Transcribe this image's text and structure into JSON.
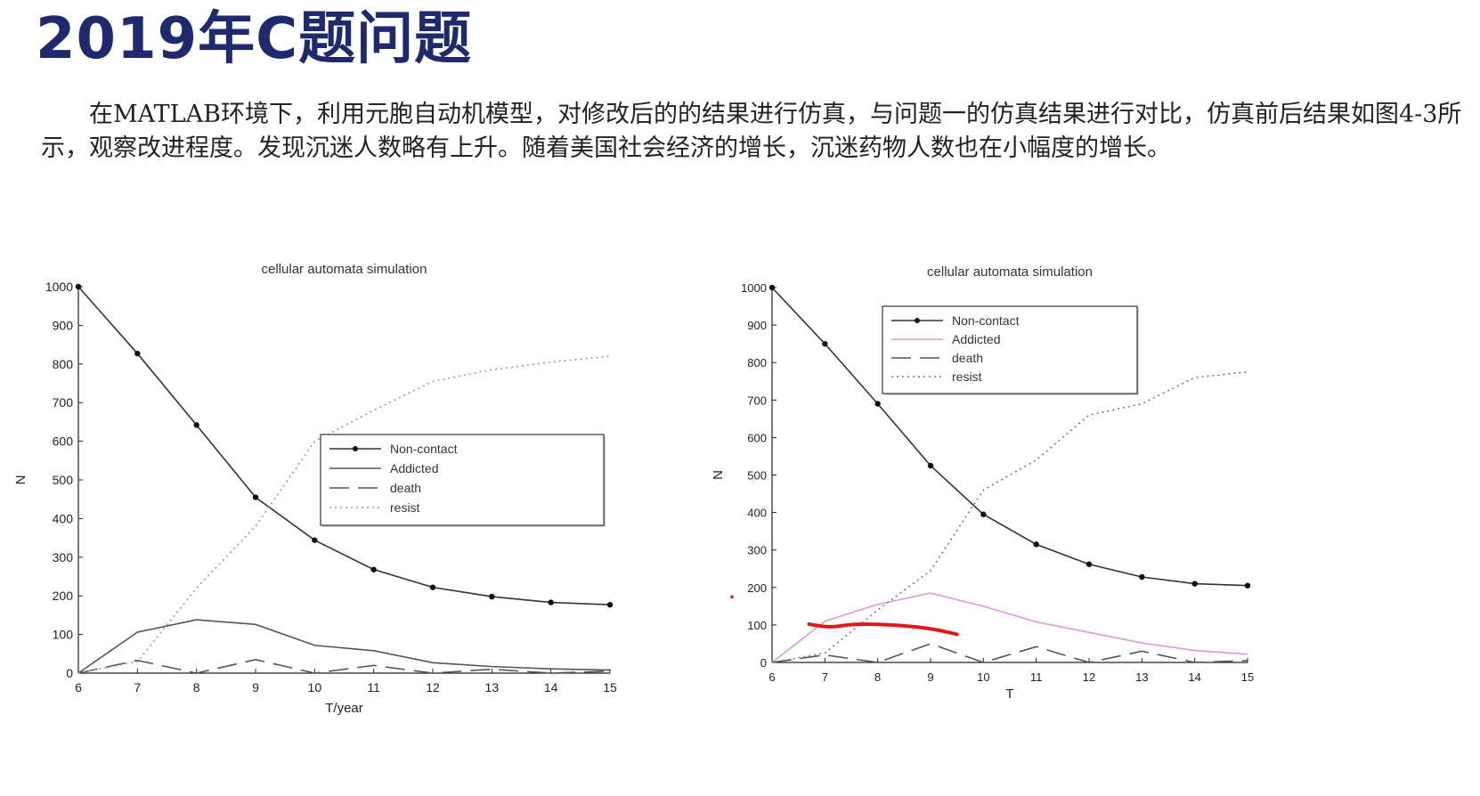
{
  "slide": {
    "title": "2019年C题问题",
    "paragraph": "在MATLAB环境下，利用元胞自动机模型，对修改后的的结果进行仿真，与问题一的仿真结果进行对比，仿真前后结果如图4-3所示，观察改进程度。发现沉迷人数略有上升。随着美国社会经济的增长，沉迷药物人数也在小幅度的增长。"
  },
  "chart_data": [
    {
      "type": "line",
      "title": "cellular automata simulation",
      "xlabel": "T/year",
      "ylabel": "N",
      "xlim": [
        6,
        15
      ],
      "ylim": [
        0,
        1000
      ],
      "x_ticks": [
        6,
        7,
        8,
        9,
        10,
        11,
        12,
        13,
        14,
        15
      ],
      "y_ticks": [
        0,
        100,
        200,
        300,
        400,
        500,
        600,
        700,
        800,
        900,
        1000
      ],
      "legend_position": "center-right",
      "x": [
        6,
        7,
        8,
        9,
        10,
        11,
        12,
        13,
        14,
        15
      ],
      "series": [
        {
          "name": "Non-contact",
          "style": "solid-marker",
          "color": "#333333",
          "values": [
            1000,
            827,
            642,
            455,
            344,
            268,
            222,
            198,
            183,
            177
          ]
        },
        {
          "name": "Addicted",
          "style": "solid",
          "color": "#555555",
          "values": [
            0,
            106,
            138,
            126,
            72,
            58,
            27,
            17,
            11,
            8
          ]
        },
        {
          "name": "death",
          "style": "dashed",
          "color": "#555555",
          "values": [
            0,
            33,
            0,
            35,
            0,
            20,
            0,
            10,
            0,
            5
          ]
        },
        {
          "name": "resist",
          "style": "dotted",
          "color": "#999999",
          "values": [
            0,
            30,
            220,
            380,
            600,
            680,
            755,
            785,
            805,
            820
          ]
        }
      ]
    },
    {
      "type": "line",
      "title": "cellular automata simulation",
      "xlabel": "T",
      "ylabel": "N",
      "xlim": [
        6,
        15
      ],
      "ylim": [
        0,
        1000
      ],
      "x_ticks": [
        6,
        7,
        8,
        9,
        10,
        11,
        12,
        13,
        14,
        15
      ],
      "y_ticks": [
        0,
        100,
        200,
        300,
        400,
        500,
        600,
        700,
        800,
        900,
        1000
      ],
      "legend_position": "top-right",
      "x": [
        6,
        7,
        8,
        9,
        10,
        11,
        12,
        13,
        14,
        15
      ],
      "series": [
        {
          "name": "Non-contact",
          "style": "solid-marker",
          "color": "#333333",
          "values": [
            1000,
            850,
            690,
            525,
            395,
            315,
            262,
            228,
            210,
            205
          ]
        },
        {
          "name": "Addicted",
          "style": "solid",
          "color": "#d99bd6",
          "values": [
            0,
            110,
            155,
            185,
            150,
            108,
            80,
            52,
            32,
            22
          ]
        },
        {
          "name": "death",
          "style": "dashed",
          "color": "#555555",
          "values": [
            0,
            20,
            0,
            50,
            0,
            42,
            0,
            30,
            0,
            5
          ]
        },
        {
          "name": "resist",
          "style": "dotted",
          "color": "#777777",
          "values": [
            0,
            25,
            140,
            245,
            460,
            540,
            660,
            690,
            760,
            775
          ]
        }
      ],
      "annotation": {
        "type": "freehand",
        "color": "#e01818",
        "x": [
          6.7,
          7.1,
          7.5,
          8.0,
          8.5,
          8.9,
          9.2,
          9.5
        ],
        "values": [
          102,
          93,
          102,
          102,
          98,
          92,
          85,
          75
        ]
      }
    }
  ]
}
